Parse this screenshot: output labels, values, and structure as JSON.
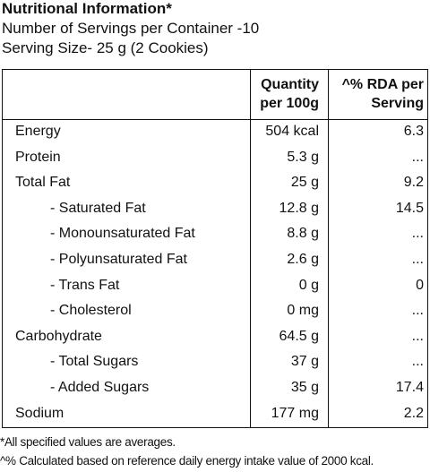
{
  "header": {
    "title": "Nutritional Information*",
    "servings": "Number of Servings per Container -10",
    "serving_size": "Serving Size- 25 g (2 Cookies)"
  },
  "table": {
    "columns": [
      "",
      "Quantity per 100g",
      "^% RDA per Serving"
    ],
    "rows": [
      [
        "Energy",
        "504 kcal",
        "6.3"
      ],
      [
        "Protein",
        "5.3 g",
        "..."
      ],
      [
        "Total Fat",
        "25 g",
        "9.2"
      ],
      [
        "- Saturated Fat",
        "12.8 g",
        "14.5"
      ],
      [
        "- Monounsaturated Fat",
        "8.8 g",
        "..."
      ],
      [
        "- Polyunsaturated Fat",
        "2.6 g",
        "..."
      ],
      [
        "- Trans Fat",
        "0 g",
        "0"
      ],
      [
        "- Cholesterol",
        "0 mg",
        "..."
      ],
      [
        "Carbohydrate",
        "64.5 g",
        "..."
      ],
      [
        "- Total Sugars",
        "37 g",
        "..."
      ],
      [
        "- Added Sugars",
        "35 g",
        "17.4"
      ],
      [
        "Sodium",
        "177 mg",
        "2.2"
      ]
    ]
  },
  "footnotes": [
    "*All specified values are averages.",
    "^% Calculated based on reference daily energy intake value of 2000 kcal."
  ]
}
